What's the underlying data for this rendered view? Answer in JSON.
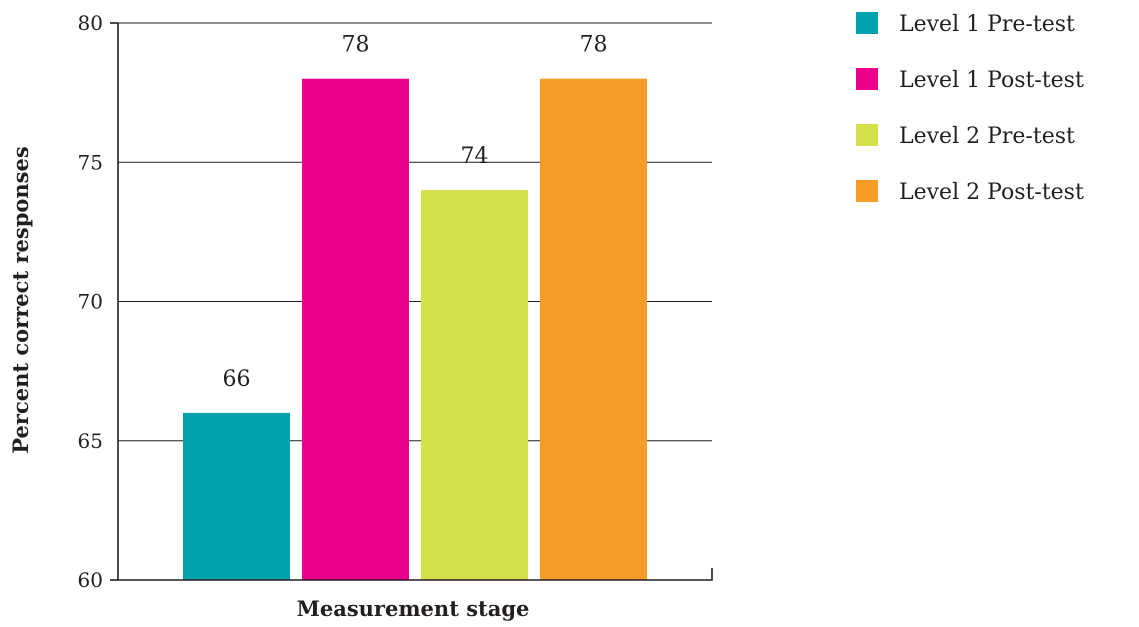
{
  "chart_data": {
    "type": "bar",
    "title": "",
    "xlabel": "Measurement stage",
    "ylabel": "Percent correct responses",
    "ylim": [
      60,
      80
    ],
    "yticks": [
      60,
      65,
      70,
      75,
      80
    ],
    "grid": true,
    "legend_position": "right",
    "categories": [
      "Level 1 Pre-test",
      "Level 1 Post-test",
      "Level 2 Pre-test",
      "Level 2 Post-test"
    ],
    "values": [
      66,
      78,
      74,
      78
    ],
    "colors": [
      "#00a3ad",
      "#ec008c",
      "#d4df4a",
      "#f89c28"
    ],
    "data_labels": [
      "66",
      "78",
      "74",
      "78"
    ]
  }
}
